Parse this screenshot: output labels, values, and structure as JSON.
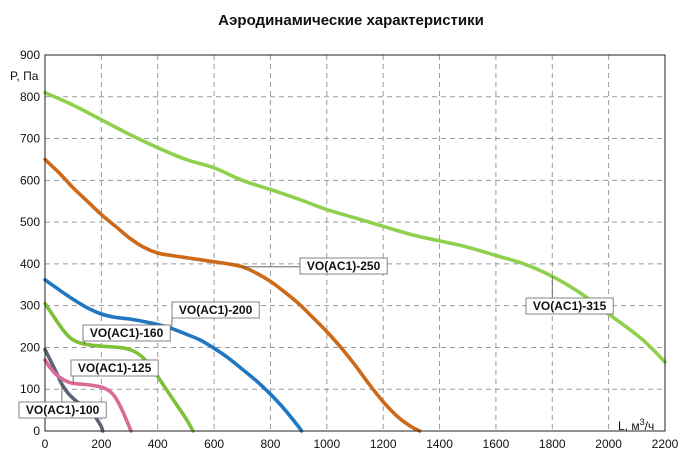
{
  "chart_data": {
    "type": "line",
    "title": "Аэродинамические характеристики",
    "ylabel": "P, Па",
    "xlabel_prefix": "L, м",
    "xlabel_sup": "3",
    "xlabel_suffix": "/ч",
    "xlim": [
      0,
      2200
    ],
    "ylim": [
      0,
      900
    ],
    "x_ticks": [
      0,
      200,
      400,
      600,
      800,
      1000,
      1200,
      1400,
      1600,
      1800,
      2000,
      2200
    ],
    "y_ticks": [
      0,
      100,
      200,
      300,
      400,
      500,
      600,
      700,
      800,
      900
    ],
    "grid": true,
    "series": [
      {
        "name": "VO(AC1)-100",
        "color": "#5a6475",
        "points": [
          [
            0,
            195
          ],
          [
            20,
            168
          ],
          [
            40,
            140
          ],
          [
            60,
            112
          ],
          [
            80,
            92
          ],
          [
            100,
            78
          ],
          [
            120,
            67
          ],
          [
            140,
            58
          ],
          [
            160,
            50
          ],
          [
            175,
            38
          ],
          [
            190,
            22
          ],
          [
            200,
            10
          ],
          [
            205,
            0
          ]
        ]
      },
      {
        "name": "VO(AC1)-125",
        "color": "#d96b97",
        "points": [
          [
            0,
            170
          ],
          [
            20,
            150
          ],
          [
            40,
            135
          ],
          [
            60,
            125
          ],
          [
            80,
            118
          ],
          [
            100,
            114
          ],
          [
            130,
            112
          ],
          [
            160,
            110
          ],
          [
            200,
            105
          ],
          [
            230,
            95
          ],
          [
            250,
            80
          ],
          [
            270,
            55
          ],
          [
            290,
            25
          ],
          [
            305,
            0
          ]
        ]
      },
      {
        "name": "VO(AC1)-160",
        "color": "#7fbf3a",
        "points": [
          [
            0,
            305
          ],
          [
            25,
            280
          ],
          [
            50,
            255
          ],
          [
            75,
            233
          ],
          [
            100,
            218
          ],
          [
            140,
            208
          ],
          [
            200,
            203
          ],
          [
            260,
            200
          ],
          [
            300,
            195
          ],
          [
            340,
            180
          ],
          [
            380,
            150
          ],
          [
            420,
            110
          ],
          [
            460,
            70
          ],
          [
            500,
            30
          ],
          [
            525,
            0
          ]
        ]
      },
      {
        "name": "VO(AC1)-200",
        "color": "#1f77c2",
        "points": [
          [
            0,
            362
          ],
          [
            50,
            338
          ],
          [
            100,
            315
          ],
          [
            150,
            295
          ],
          [
            200,
            280
          ],
          [
            250,
            272
          ],
          [
            300,
            268
          ],
          [
            350,
            262
          ],
          [
            400,
            255
          ],
          [
            450,
            245
          ],
          [
            500,
            232
          ],
          [
            550,
            218
          ],
          [
            600,
            198
          ],
          [
            650,
            175
          ],
          [
            700,
            148
          ],
          [
            750,
            120
          ],
          [
            800,
            88
          ],
          [
            850,
            52
          ],
          [
            900,
            10
          ],
          [
            910,
            0
          ]
        ]
      },
      {
        "name": "VO(AC1)-250",
        "color": "#cc6a1a",
        "points": [
          [
            0,
            650
          ],
          [
            50,
            618
          ],
          [
            100,
            582
          ],
          [
            150,
            550
          ],
          [
            200,
            518
          ],
          [
            250,
            490
          ],
          [
            300,
            462
          ],
          [
            350,
            440
          ],
          [
            400,
            426
          ],
          [
            450,
            420
          ],
          [
            500,
            415
          ],
          [
            550,
            410
          ],
          [
            600,
            405
          ],
          [
            650,
            400
          ],
          [
            700,
            393
          ],
          [
            750,
            378
          ],
          [
            800,
            358
          ],
          [
            850,
            333
          ],
          [
            900,
            305
          ],
          [
            950,
            272
          ],
          [
            1000,
            238
          ],
          [
            1050,
            200
          ],
          [
            1100,
            158
          ],
          [
            1150,
            112
          ],
          [
            1200,
            70
          ],
          [
            1250,
            35
          ],
          [
            1300,
            10
          ],
          [
            1330,
            0
          ]
        ]
      },
      {
        "name": "VO(AC1)-315",
        "color": "#8fd14f",
        "points": [
          [
            0,
            810
          ],
          [
            100,
            780
          ],
          [
            200,
            745
          ],
          [
            300,
            710
          ],
          [
            400,
            678
          ],
          [
            500,
            650
          ],
          [
            600,
            630
          ],
          [
            700,
            600
          ],
          [
            800,
            578
          ],
          [
            900,
            555
          ],
          [
            1000,
            530
          ],
          [
            1100,
            510
          ],
          [
            1200,
            490
          ],
          [
            1300,
            470
          ],
          [
            1400,
            455
          ],
          [
            1500,
            440
          ],
          [
            1600,
            420
          ],
          [
            1700,
            400
          ],
          [
            1800,
            370
          ],
          [
            1900,
            330
          ],
          [
            2000,
            280
          ],
          [
            2100,
            230
          ],
          [
            2150,
            200
          ],
          [
            2200,
            165
          ]
        ]
      }
    ]
  }
}
